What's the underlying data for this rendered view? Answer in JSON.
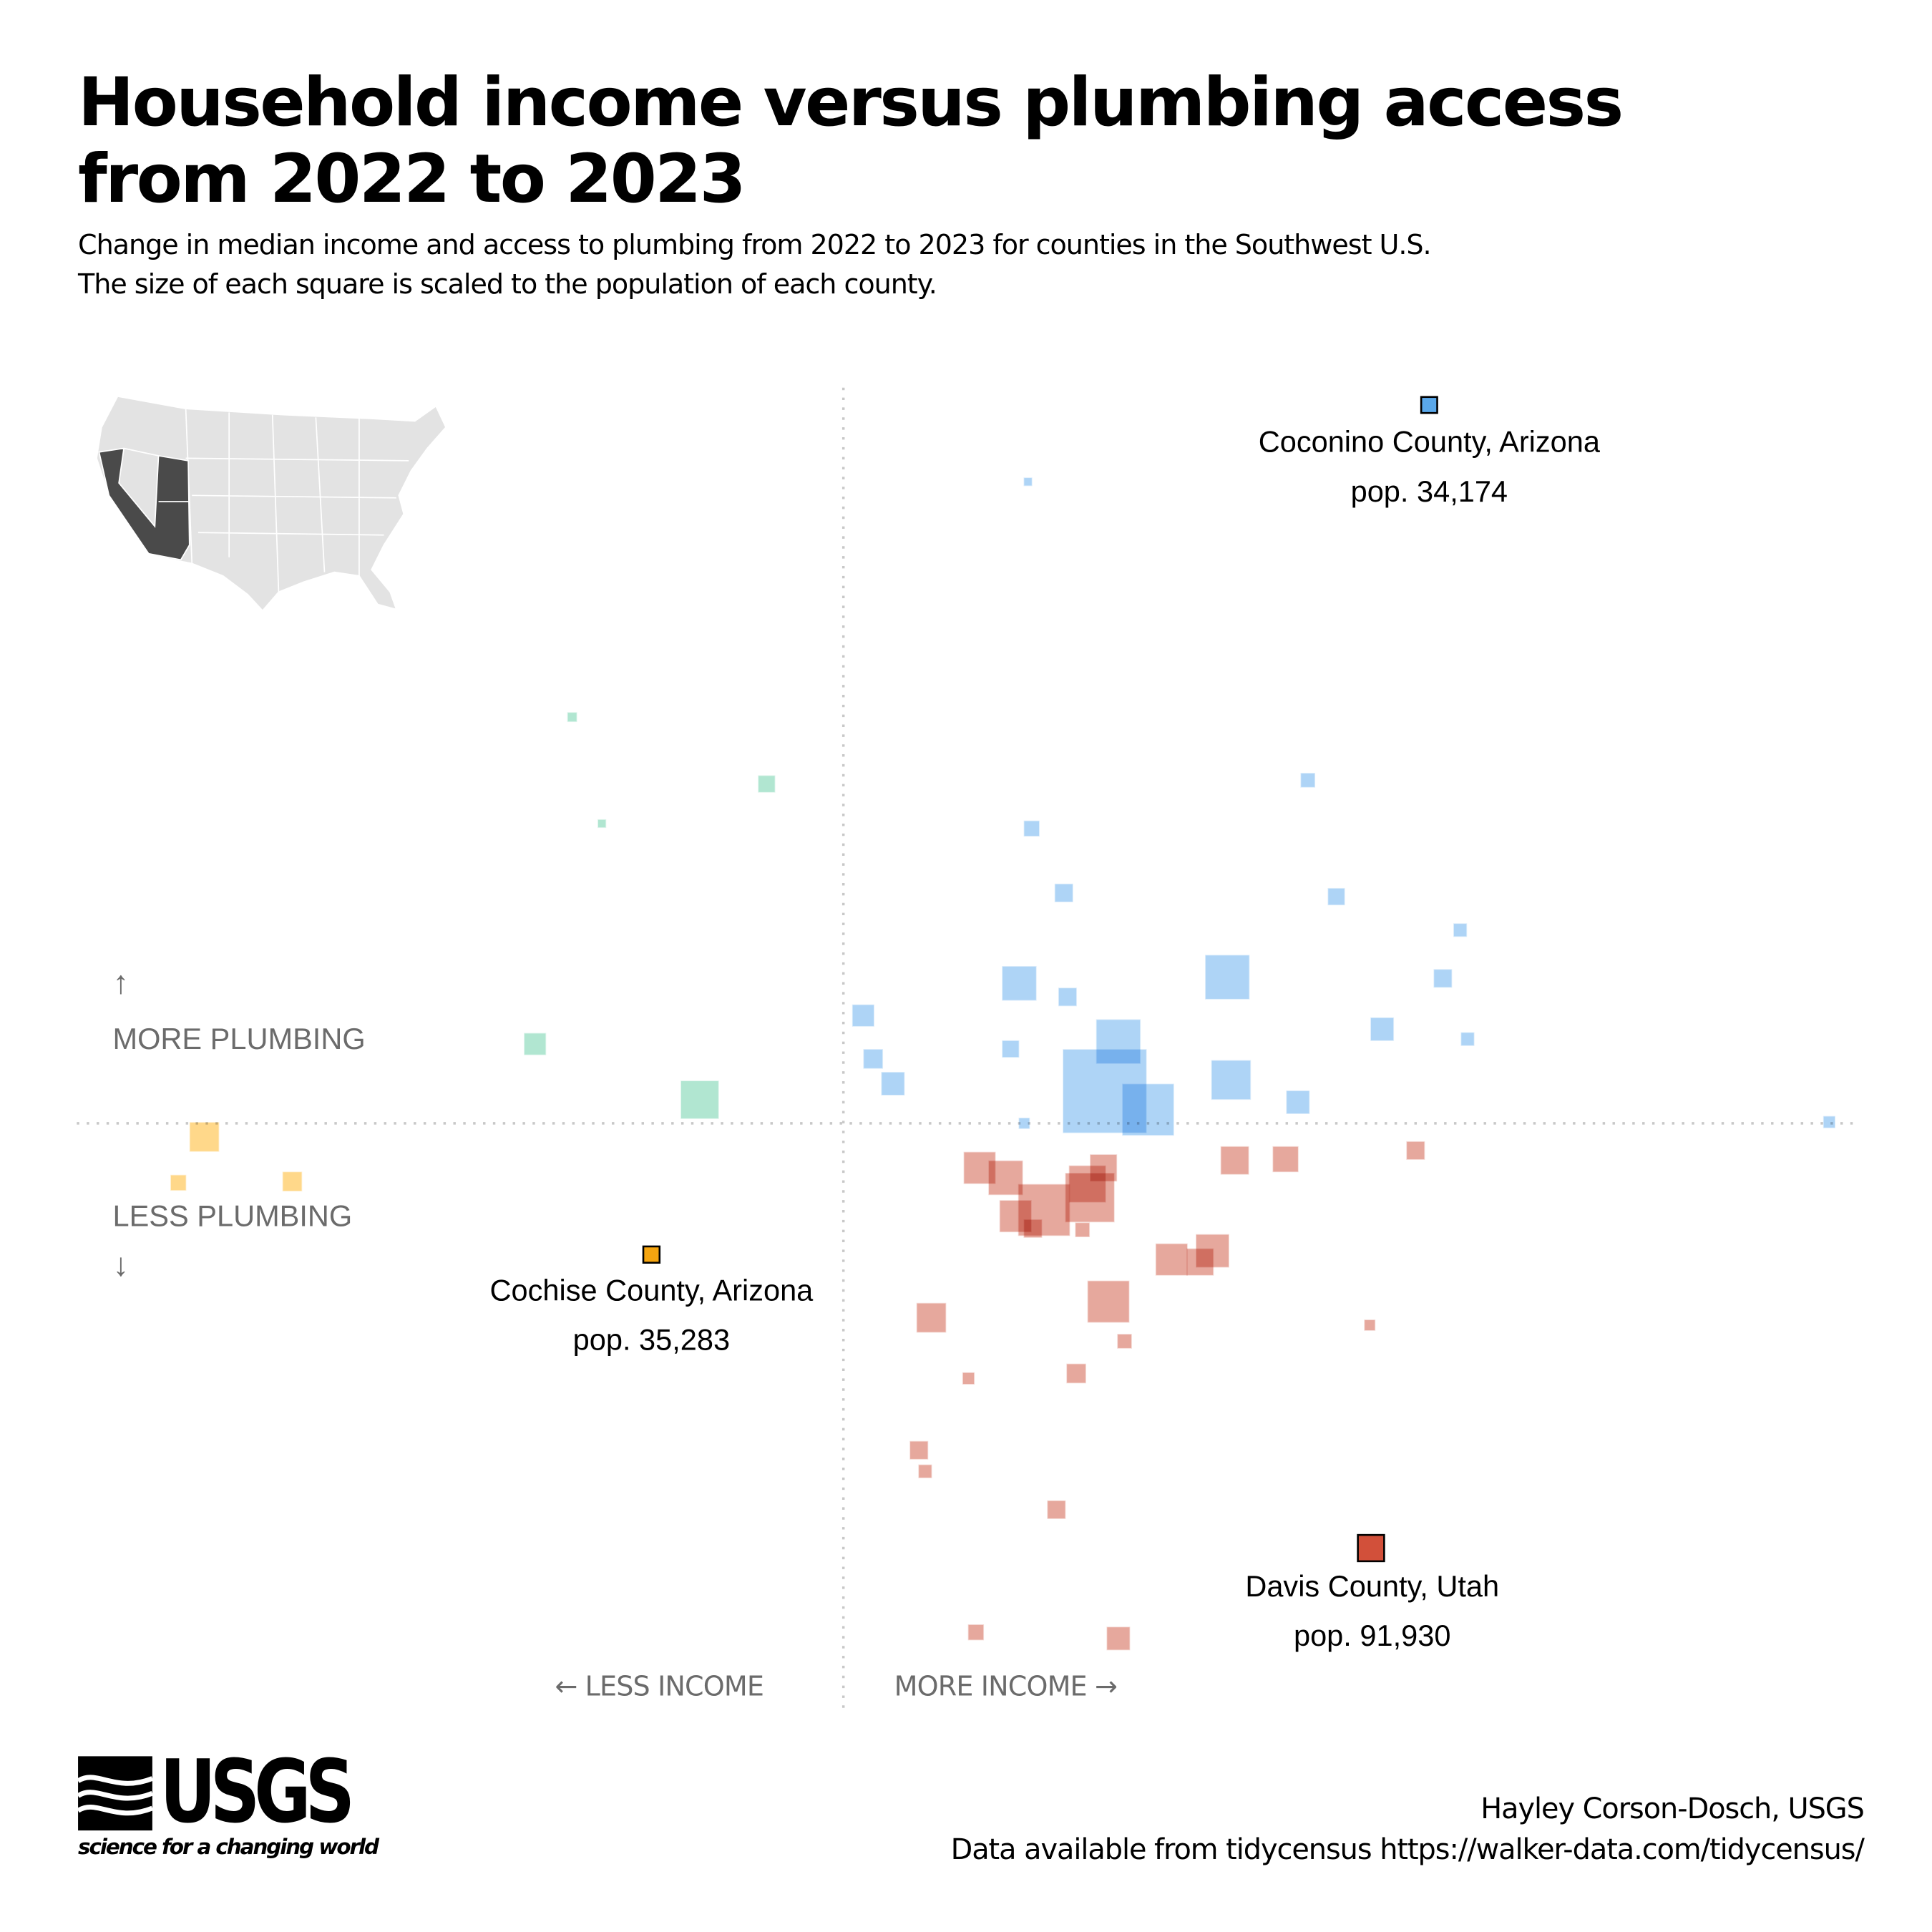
{
  "title": "Household income versus plumbing access from 2022 to 2023",
  "subtitle_line1": "Change in median income and access to plumbing from 2022 to 2023 for counties in the Southwest U.S.",
  "subtitle_line2": "The size of each square is scaled to the population of each county.",
  "labels": {
    "up_arrow": "↑",
    "more_plumbing": "MORE PLUMBING",
    "less_plumbing": "LESS PLUMBING",
    "down_arrow": "↓",
    "less_income": "← LESS INCOME",
    "more_income": "MORE INCOME →"
  },
  "annotations": [
    {
      "name": "Coconino County, Arizona",
      "pop": "pop. 34,174"
    },
    {
      "name": "Cochise County, Arizona",
      "pop": "pop. 35,283"
    },
    {
      "name": "Davis County, Utah",
      "pop": "pop. 91,930"
    }
  ],
  "credit_line1": "Hayley Corson-Dosch, USGS",
  "credit_line2": "Data available from tidycensus https://walker-data.com/tidycensus/",
  "logo": {
    "word": "USGS",
    "tagline": "science for a changing world"
  },
  "colors": {
    "more_income_more_plumbing": "#a5cff5",
    "less_income_more_plumbing": "#a8e3cc",
    "less_income_less_plumbing": "#ffd47d",
    "more_income_less_plumbing": "#e39e92",
    "highlight_blue": "#5aa8ea",
    "highlight_orange": "#f5a510",
    "highlight_red": "#d2503a",
    "inset_states": "#4a4a4a",
    "inset_background_states": "#e3e3e3"
  },
  "chart_data": {
    "type": "scatter",
    "xlabel": "MORE INCOME →",
    "ylabel": "MORE PLUMBING",
    "x_quantity": "change in median income (relative, centered at 0)",
    "y_quantity": "change in plumbing access (relative, centered at 0)",
    "xlim": [
      -62,
      83
    ],
    "ylim": [
      -48,
      60
    ],
    "grid": false,
    "reference_lines": {
      "x": 0,
      "y": 0
    },
    "inset_map_highlight": [
      "California",
      "Nevada",
      "Utah",
      "Arizona"
    ],
    "points": [
      {
        "x": 14.9,
        "y": 51.8,
        "pop": 10000,
        "q": "b"
      },
      {
        "x": 37.5,
        "y": 27.7,
        "pop": 29000,
        "q": "b"
      },
      {
        "x": 15.2,
        "y": 23.8,
        "pop": 34000,
        "q": "b"
      },
      {
        "x": 17.8,
        "y": 18.6,
        "pop": 46000,
        "q": "b"
      },
      {
        "x": 39.8,
        "y": 18.3,
        "pop": 40000,
        "q": "b"
      },
      {
        "x": 49.8,
        "y": 15.6,
        "pop": 25000,
        "q": "b"
      },
      {
        "x": 14.2,
        "y": 11.3,
        "pop": 160000,
        "q": "b"
      },
      {
        "x": 18.1,
        "y": 10.2,
        "pop": 46000,
        "q": "b"
      },
      {
        "x": 31.0,
        "y": 11.8,
        "pop": 265000,
        "q": "b"
      },
      {
        "x": 48.4,
        "y": 11.7,
        "pop": 46000,
        "q": "b"
      },
      {
        "x": 43.5,
        "y": 7.6,
        "pop": 74000,
        "q": "b"
      },
      {
        "x": 50.4,
        "y": 6.8,
        "pop": 25000,
        "q": "b"
      },
      {
        "x": 1.6,
        "y": 8.7,
        "pop": 66000,
        "q": "b"
      },
      {
        "x": 13.5,
        "y": 6.0,
        "pop": 40000,
        "q": "b"
      },
      {
        "x": 22.2,
        "y": 6.6,
        "pop": 265000,
        "q": "b"
      },
      {
        "x": 2.4,
        "y": 5.2,
        "pop": 52000,
        "q": "b"
      },
      {
        "x": 4.0,
        "y": 3.2,
        "pop": 74000,
        "q": "b"
      },
      {
        "x": 21.1,
        "y": 2.6,
        "pop": 940000,
        "q": "b"
      },
      {
        "x": 31.3,
        "y": 3.5,
        "pop": 210000,
        "q": "b"
      },
      {
        "x": 24.6,
        "y": 1.1,
        "pop": 360000,
        "q": "b"
      },
      {
        "x": 36.7,
        "y": 1.7,
        "pop": 74000,
        "q": "b"
      },
      {
        "x": 14.6,
        "y": 0.0,
        "pop": 17000,
        "q": "b"
      },
      {
        "x": 79.6,
        "y": 0.1,
        "pop": 20000,
        "q": "b"
      },
      {
        "x": 47.3,
        "y": 58.0,
        "pop": 34174,
        "q": "b",
        "highlight": 0
      },
      {
        "x": -21.9,
        "y": 32.8,
        "pop": 13000,
        "q": "g"
      },
      {
        "x": -6.2,
        "y": 27.4,
        "pop": 40000,
        "q": "g"
      },
      {
        "x": -19.5,
        "y": 24.2,
        "pop": 10000,
        "q": "g"
      },
      {
        "x": -24.9,
        "y": 6.4,
        "pop": 66000,
        "q": "g"
      },
      {
        "x": -11.6,
        "y": 1.9,
        "pop": 196000,
        "q": "g"
      },
      {
        "x": -51.6,
        "y": -1.1,
        "pop": 118000,
        "q": "y"
      },
      {
        "x": -53.7,
        "y": -4.8,
        "pop": 34000,
        "q": "y"
      },
      {
        "x": -44.5,
        "y": -4.7,
        "pop": 52000,
        "q": "y"
      },
      {
        "x": -15.5,
        "y": -10.6,
        "pop": 35283,
        "q": "y",
        "highlight": 1
      },
      {
        "x": 11.0,
        "y": -3.6,
        "pop": 138000,
        "q": "r"
      },
      {
        "x": 13.1,
        "y": -4.4,
        "pop": 160000,
        "q": "r"
      },
      {
        "x": 21.0,
        "y": -3.6,
        "pop": 99000,
        "q": "r"
      },
      {
        "x": 19.7,
        "y": -4.9,
        "pop": 184000,
        "q": "r"
      },
      {
        "x": 16.2,
        "y": -7.0,
        "pop": 360000,
        "q": "r"
      },
      {
        "x": 19.9,
        "y": -6.0,
        "pop": 326000,
        "q": "r"
      },
      {
        "x": 13.9,
        "y": -7.5,
        "pop": 138000,
        "q": "r"
      },
      {
        "x": 19.3,
        "y": -8.6,
        "pop": 29000,
        "q": "r"
      },
      {
        "x": 15.3,
        "y": -8.5,
        "pop": 46000,
        "q": "r"
      },
      {
        "x": 31.6,
        "y": -3.0,
        "pop": 108000,
        "q": "r"
      },
      {
        "x": 35.7,
        "y": -2.9,
        "pop": 90000,
        "q": "r"
      },
      {
        "x": 46.2,
        "y": -2.2,
        "pop": 46000,
        "q": "r"
      },
      {
        "x": 26.5,
        "y": -11.0,
        "pop": 138000,
        "q": "r"
      },
      {
        "x": 29.8,
        "y": -10.3,
        "pop": 149000,
        "q": "r"
      },
      {
        "x": 28.8,
        "y": -11.2,
        "pop": 99000,
        "q": "r"
      },
      {
        "x": 21.4,
        "y": -14.4,
        "pop": 236000,
        "q": "r"
      },
      {
        "x": 7.1,
        "y": -15.7,
        "pop": 118000,
        "q": "r"
      },
      {
        "x": 22.7,
        "y": -17.6,
        "pop": 29000,
        "q": "r"
      },
      {
        "x": 42.5,
        "y": -16.3,
        "pop": 17000,
        "q": "r"
      },
      {
        "x": 10.1,
        "y": -20.6,
        "pop": 20000,
        "q": "r"
      },
      {
        "x": 18.8,
        "y": -20.2,
        "pop": 52000,
        "q": "r"
      },
      {
        "x": 6.1,
        "y": -26.4,
        "pop": 46000,
        "q": "r"
      },
      {
        "x": 6.6,
        "y": -28.1,
        "pop": 25000,
        "q": "r"
      },
      {
        "x": 17.2,
        "y": -31.2,
        "pop": 46000,
        "q": "r"
      },
      {
        "x": 10.7,
        "y": -41.1,
        "pop": 34000,
        "q": "r"
      },
      {
        "x": 22.2,
        "y": -41.6,
        "pop": 74000,
        "q": "r"
      },
      {
        "x": 42.6,
        "y": -34.3,
        "pop": 91930,
        "q": "r",
        "highlight": 2
      }
    ]
  }
}
